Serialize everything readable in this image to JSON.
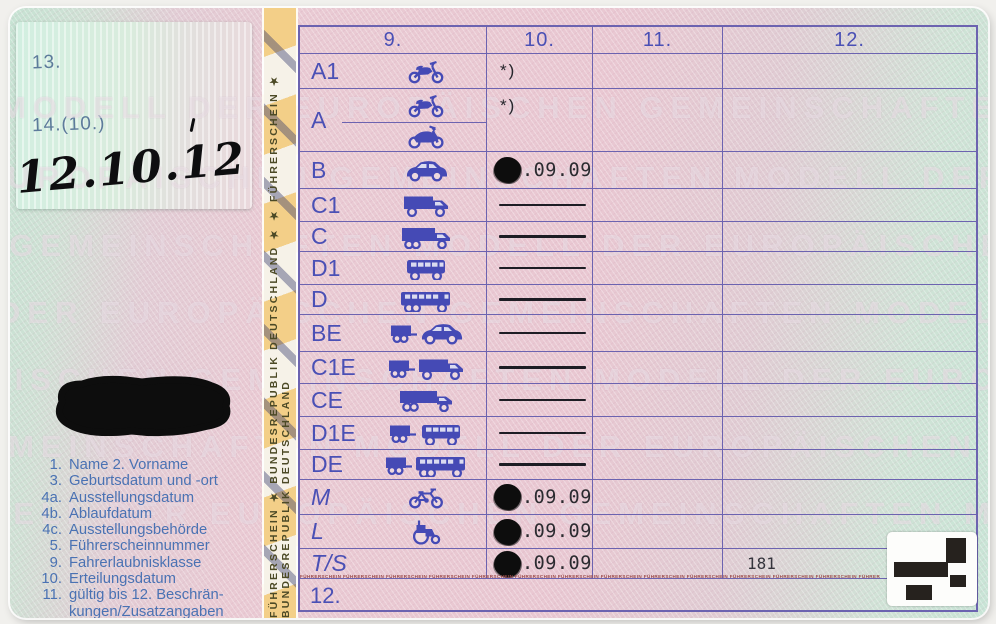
{
  "strip": {
    "text": "FÜHRERSCHEIN ★ BUNDESREPUBLIK DEUTSCHLAND ★ ★ FÜHRERSCHEIN ★ BUNDESREPUBLIK DEUTSCHLAND"
  },
  "watermark": {
    "phrase": "MODELL DER EUROPÄISCHEN GEMEINSCHAFTEN"
  },
  "micro": {
    "word": "FÜHRERSCHEIN"
  },
  "left_panel": {
    "field13_label": "13.",
    "field14_label": "14.(10.)",
    "handwritten_date": "12.10.12",
    "legend": [
      {
        "num": "1.",
        "text": "Name 2. Vorname"
      },
      {
        "num": "3.",
        "text": "Geburtsdatum und -ort"
      },
      {
        "num": "4a.",
        "text": "Ausstellungsdatum"
      },
      {
        "num": "4b.",
        "text": "Ablaufdatum"
      },
      {
        "num": "4c.",
        "text": "Ausstellungsbehörde"
      },
      {
        "num": "5.",
        "text": "Führerscheinnummer"
      },
      {
        "num": "9.",
        "text": "Fahrerlaubnisklasse"
      },
      {
        "num": "10.",
        "text": "Erteilungsdatum"
      },
      {
        "num": "11.",
        "text": "gültig bis  12. Beschrän-"
      },
      {
        "num": "",
        "text": "kungen/Zusatzangaben"
      }
    ]
  },
  "table": {
    "headers": [
      "9.",
      "10.",
      "11.",
      "12."
    ],
    "footnote_mark": "*)",
    "date_suffix": ".09.09",
    "footer_label": "12.",
    "rows": [
      {
        "label": "A1",
        "icons": [
          "light-motorcycle-icon"
        ],
        "col10": "footnote"
      },
      {
        "label": "A",
        "icons": [
          "light-motorcycle-icon",
          "motorcycle-icon"
        ],
        "col10": "footnote",
        "tall": true
      },
      {
        "label": "B",
        "icons": [
          "car-icon"
        ],
        "col10": "redacted-date"
      },
      {
        "label": "C1",
        "icons": [
          "box-truck-icon"
        ],
        "col10": "line"
      },
      {
        "label": "C",
        "icons": [
          "truck-icon"
        ],
        "col10": "line"
      },
      {
        "label": "D1",
        "icons": [
          "minibus-icon"
        ],
        "col10": "line"
      },
      {
        "label": "D",
        "icons": [
          "bus-icon"
        ],
        "col10": "line"
      },
      {
        "label": "BE",
        "icons": [
          "trailer-icon",
          "car-icon"
        ],
        "col10": "line"
      },
      {
        "label": "C1E",
        "icons": [
          "trailer-icon",
          "box-truck-icon"
        ],
        "col10": "line"
      },
      {
        "label": "CE",
        "icons": [
          "semitrailer-truck-icon"
        ],
        "col10": "line"
      },
      {
        "label": "D1E",
        "icons": [
          "trailer-icon",
          "minibus-icon"
        ],
        "col10": "line"
      },
      {
        "label": "DE",
        "icons": [
          "trailer-icon",
          "bus-icon"
        ],
        "col10": "line"
      },
      {
        "label": "M",
        "italic": true,
        "icons": [
          "moped-icon"
        ],
        "col10": "redacted-date"
      },
      {
        "label": "L",
        "italic": true,
        "icons": [
          "tractor-icon"
        ],
        "col10": "redacted-date"
      },
      {
        "label": "T/S",
        "italic": true,
        "icons": [],
        "col10": "redacted-date",
        "col12": "181"
      }
    ]
  },
  "colors": {
    "accent_blue": "#4a50b5",
    "border_purple": "#6c63b0",
    "icon_blue": "#454ab5",
    "date_ink": "#2b2b30",
    "strip_gold": "#f2cd85",
    "legend_blue": "#4a72b3",
    "micro_red": "#9b4b4b",
    "redaction_black": "#0d0d0d"
  }
}
